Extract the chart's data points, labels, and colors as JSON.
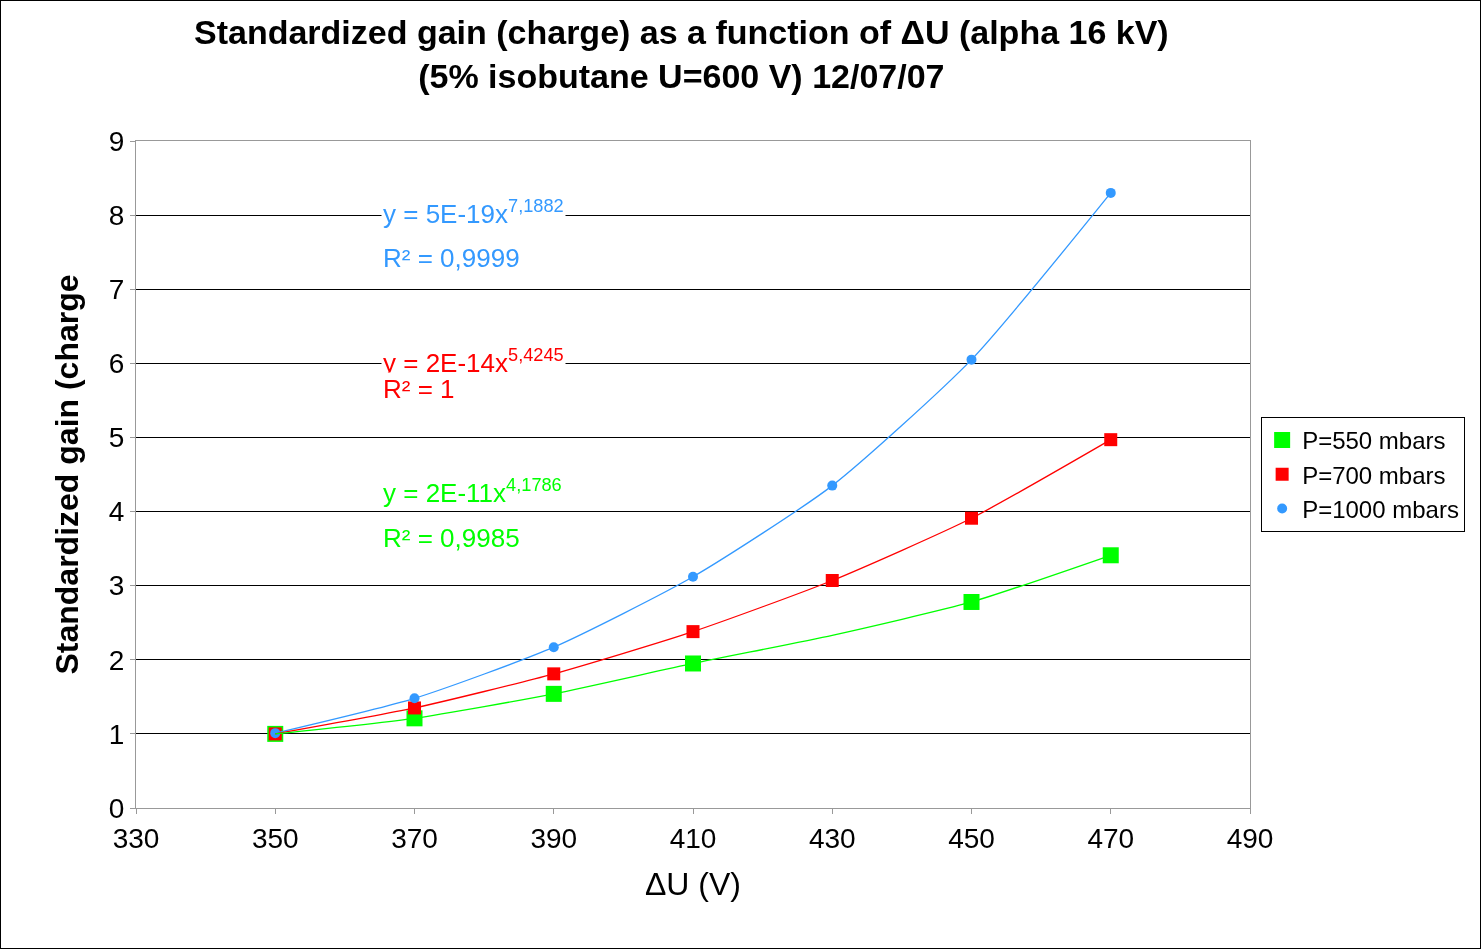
{
  "chart_data": {
    "type": "scatter",
    "title": "Standardized gain (charge) as a function of ΔU (alpha 16 kV)\n(5% isobutane U=600 V) 12/07/07",
    "xlabel": "ΔU (V)",
    "ylabel": "Standardized gain (charge",
    "xlim": [
      330,
      490
    ],
    "xticks": [
      330,
      350,
      370,
      390,
      410,
      430,
      450,
      470,
      490
    ],
    "ylim": [
      0,
      9
    ],
    "yticks": [
      0,
      1,
      2,
      3,
      4,
      5,
      6,
      7,
      8,
      9
    ],
    "grid": "y",
    "legend": "right",
    "series": [
      {
        "name": "P=550 mbars",
        "color": "#00ff00",
        "marker": "square",
        "x": [
          350,
          370,
          390,
          410,
          450,
          470
        ],
        "values": [
          1.0,
          1.21,
          1.54,
          1.95,
          2.78,
          3.41
        ]
      },
      {
        "name": "P=700 mbars",
        "color": "#ff0000",
        "marker": "square",
        "x": [
          350,
          370,
          390,
          410,
          430,
          450,
          470
        ],
        "values": [
          1.0,
          1.35,
          1.81,
          2.38,
          3.07,
          3.91,
          4.97
        ]
      },
      {
        "name": "P=1000 mbars",
        "color": "#3399ff",
        "marker": "circle",
        "x": [
          350,
          370,
          390,
          410,
          430,
          450,
          470
        ],
        "values": [
          1.01,
          1.48,
          2.17,
          3.12,
          4.35,
          6.05,
          8.3
        ]
      },
      {
        "type": "line",
        "color": "#3399ff",
        "marker": "none",
        "x": [
          350,
          370,
          390,
          410,
          430,
          450,
          470
        ],
        "values": [
          1.01,
          1.48,
          2.17,
          3.12,
          4.35,
          6.05,
          8.3
        ]
      },
      {
        "type": "line",
        "color": "#ff0000",
        "marker": "none",
        "x": [
          350,
          370,
          390,
          410,
          430,
          450,
          470
        ],
        "values": [
          1.0,
          1.35,
          1.81,
          2.38,
          3.07,
          3.91,
          4.97
        ]
      },
      {
        "type": "line",
        "color": "#00ff00",
        "marker": "none",
        "x": [
          350,
          370,
          390,
          410,
          430,
          450,
          470
        ],
        "values": [
          1.0,
          1.21,
          1.54,
          1.95,
          2.33,
          2.78,
          3.41
        ]
      }
    ],
    "annotations": [
      "y = 5E-19x$^{7,1882}$",
      "R² = 0,9999",
      "y = 2E-14x$^{5,4245}$",
      "R² = 1",
      "y = 2E-11x$^{4,1786}$",
      "R² = 0,9985"
    ]
  }
}
